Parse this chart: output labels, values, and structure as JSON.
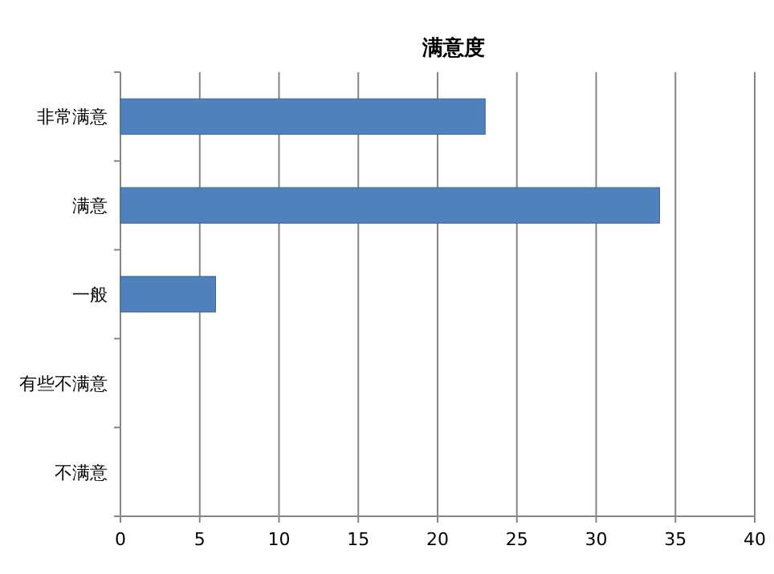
{
  "chart_data": {
    "type": "bar",
    "orientation": "horizontal",
    "title": "满意度",
    "categories": [
      "非常满意",
      "满意",
      "一般",
      "有些不满意",
      "不满意"
    ],
    "values": [
      23,
      34,
      6,
      0,
      0
    ],
    "color": "#4f81bd",
    "xlim": [
      0,
      40
    ],
    "xticks": [
      0,
      5,
      10,
      15,
      20,
      25,
      30,
      35,
      40
    ],
    "grid": "x"
  }
}
